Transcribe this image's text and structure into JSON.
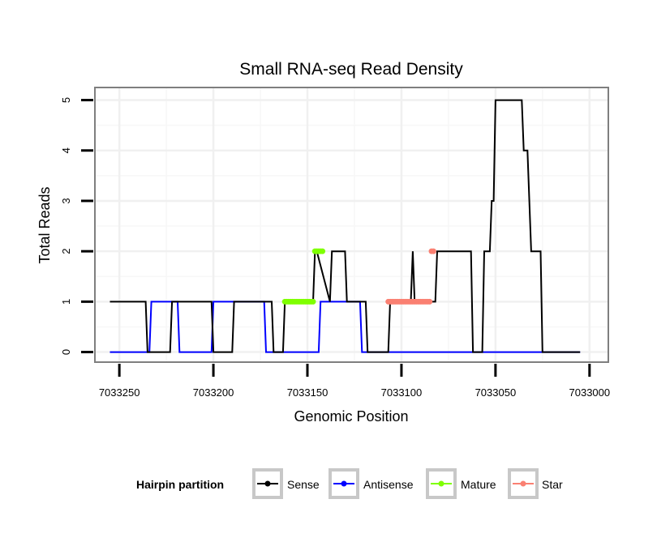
{
  "chart_data": {
    "type": "line",
    "title": "Small RNA-seq Read Density",
    "xlabel": "Genomic Position",
    "ylabel": "Total Reads",
    "xlim": [
      7033263,
      7032990
    ],
    "ylim": [
      -0.2,
      5.25
    ],
    "x_reversed": true,
    "x_ticks": [
      7033250,
      7033200,
      7033150,
      7033100,
      7033050,
      7033000
    ],
    "y_ticks": [
      0,
      1,
      2,
      3,
      4,
      5
    ],
    "grid": true,
    "legend": {
      "title": "Hairpin partition",
      "placement": "bottom",
      "entries": [
        {
          "label": "Sense",
          "color": "#000000"
        },
        {
          "label": "Antisense",
          "color": "#0000ff"
        },
        {
          "label": "Mature",
          "color": "#7fff00"
        },
        {
          "label": "Star",
          "color": "#fa8072"
        }
      ]
    },
    "series": [
      {
        "name": "Sense",
        "color": "#000000",
        "style": "line",
        "x": [
          7033255,
          7033236,
          7033235,
          7033223,
          7033222,
          7033201,
          7033200,
          7033190,
          7033189,
          7033169,
          7033168,
          7033163,
          7033162,
          7033147,
          7033146,
          7033145,
          7033138,
          7033137,
          7033130,
          7033129,
          7033119,
          7033118,
          7033107,
          7033106,
          7033095,
          7033094,
          7033093,
          7033082,
          7033081,
          7033063,
          7033062,
          7033057,
          7033056,
          7033053,
          7033052,
          7033051,
          7033050,
          7033049,
          7033036,
          7033035,
          7033034,
          7033033,
          7033031,
          7033030,
          7033026,
          7033025,
          7033005
        ],
        "y": [
          1,
          1,
          0,
          0,
          1,
          1,
          0,
          0,
          1,
          1,
          0,
          0,
          1,
          1,
          2,
          2,
          1,
          2,
          2,
          1,
          1,
          0,
          0,
          1,
          1,
          2,
          1,
          1,
          2,
          2,
          0,
          0,
          2,
          2,
          3,
          3,
          5,
          5,
          5,
          4,
          4,
          4,
          2,
          2,
          2,
          0,
          0
        ]
      },
      {
        "name": "Antisense",
        "color": "#0000ff",
        "style": "line",
        "x": [
          7033255,
          7033234,
          7033233,
          7033219,
          7033218,
          7033201,
          7033200,
          7033173,
          7033172,
          7033144,
          7033143,
          7033122,
          7033121,
          7033005
        ],
        "y": [
          0,
          0,
          1,
          1,
          0,
          0,
          1,
          1,
          0,
          0,
          1,
          1,
          0,
          0
        ]
      },
      {
        "name": "Mature",
        "color": "#7fff00",
        "style": "points",
        "x": [
          7033162,
          7033161,
          7033160,
          7033159,
          7033158,
          7033157,
          7033156,
          7033155,
          7033154,
          7033153,
          7033152,
          7033151,
          7033150,
          7033149,
          7033148,
          7033147,
          7033146,
          7033145,
          7033144,
          7033143,
          7033142
        ],
        "y": [
          1,
          1,
          1,
          1,
          1,
          1,
          1,
          1,
          1,
          1,
          1,
          1,
          1,
          1,
          1,
          1,
          2,
          2,
          2,
          2,
          2
        ]
      },
      {
        "name": "Star",
        "color": "#fa8072",
        "style": "points",
        "x": [
          7033107,
          7033106,
          7033105,
          7033104,
          7033103,
          7033102,
          7033101,
          7033100,
          7033099,
          7033098,
          7033097,
          7033096,
          7033095,
          7033094,
          7033093,
          7033092,
          7033091,
          7033090,
          7033089,
          7033088,
          7033087,
          7033086,
          7033085,
          7033084,
          7033083
        ],
        "y": [
          1,
          1,
          1,
          1,
          1,
          1,
          1,
          1,
          1,
          1,
          1,
          1,
          1,
          1,
          1,
          1,
          1,
          1,
          1,
          1,
          1,
          1,
          1,
          2,
          2
        ]
      }
    ]
  }
}
